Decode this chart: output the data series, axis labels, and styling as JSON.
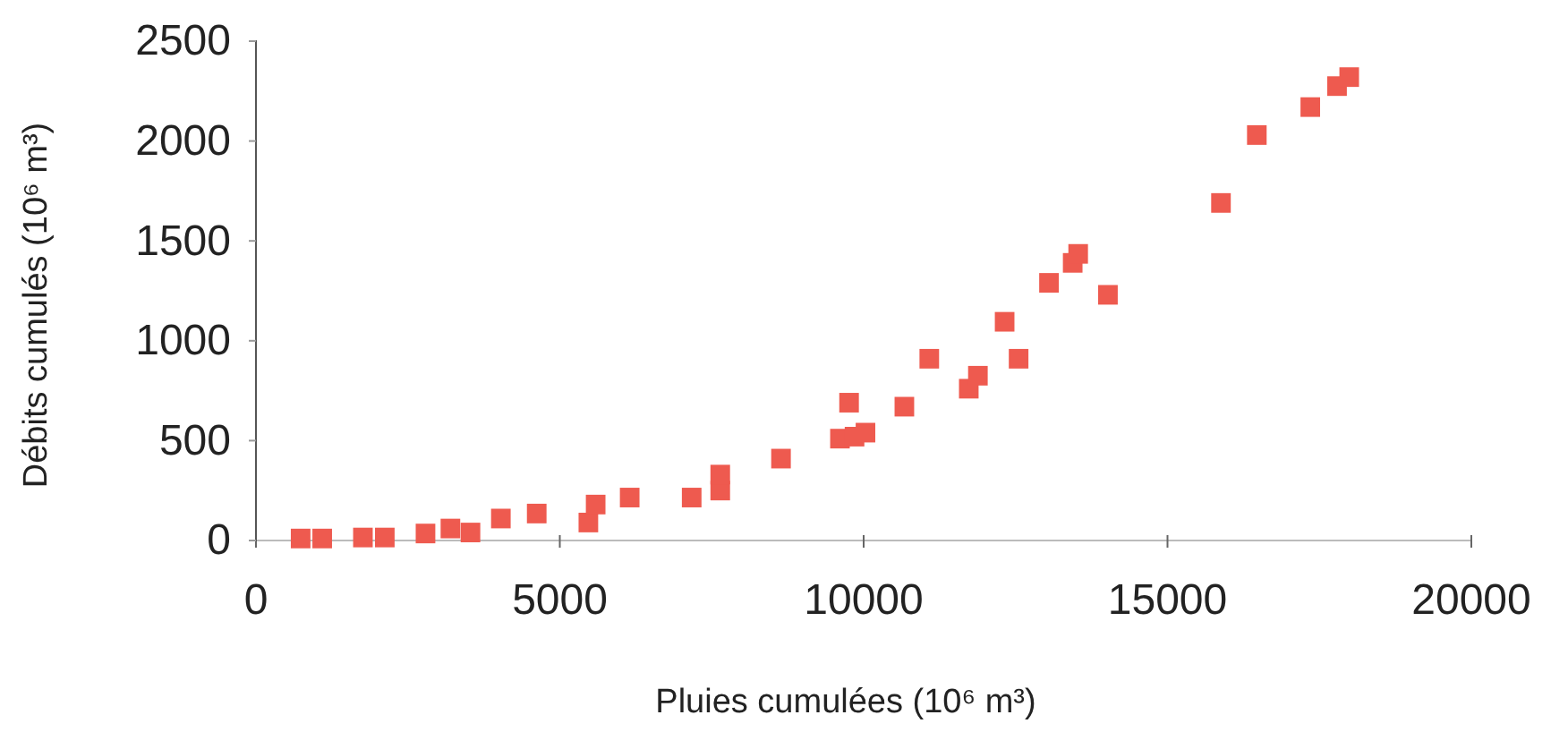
{
  "chart_data": {
    "type": "scatter",
    "xlabel": "Pluies cumulées (10⁶ m³)",
    "ylabel": "Débits cumulés (10⁶ m³)",
    "marker": "square",
    "grid": false,
    "xlim": [
      0,
      20000
    ],
    "xticks": [
      0,
      5000,
      10000,
      15000,
      20000
    ],
    "ylim": [
      0,
      2500
    ],
    "yticks": [
      0,
      500,
      1000,
      1500,
      2000,
      2500
    ],
    "series": [
      {
        "color": "#ee5a4f",
        "x": [
          735,
          1090,
          1760,
          2120,
          2790,
          3200,
          3530,
          4030,
          4620,
          5470,
          5590,
          6150,
          7170,
          7640,
          7640,
          8640,
          9610,
          9760,
          9850,
          10030,
          10670,
          11080,
          11730,
          11880,
          12320,
          12550,
          13050,
          13440,
          13530,
          14020,
          15880,
          16470,
          17350,
          17790,
          17990
        ],
        "values": [
          10,
          10,
          15,
          15,
          35,
          60,
          40,
          110,
          135,
          90,
          180,
          215,
          215,
          250,
          330,
          410,
          510,
          690,
          520,
          540,
          670,
          910,
          760,
          825,
          1095,
          910,
          1290,
          1390,
          1435,
          1230,
          1690,
          2030,
          2170,
          2275,
          2320
        ]
      }
    ]
  }
}
